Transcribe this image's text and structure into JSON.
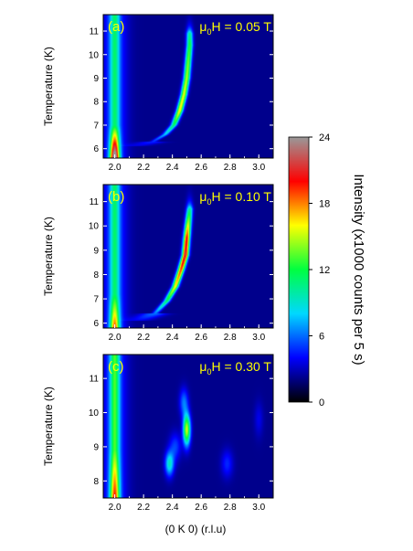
{
  "chart_data": [
    {
      "type": "heatmap",
      "panel_label": "(a)",
      "field_label": {
        "pre": "μ",
        "sub": "0",
        "post": "H = 0.05 T"
      },
      "ylabel": "Temperature (K)",
      "xlabel": "",
      "xlim": [
        1.92,
        3.1
      ],
      "ylim": [
        5.6,
        11.7
      ],
      "xticks": [
        "2.0",
        "2.2",
        "2.4",
        "2.6",
        "2.8",
        "3.0"
      ],
      "yticks": [
        "6",
        "7",
        "8",
        "9",
        "10",
        "11"
      ],
      "ridge": [
        [
          2.14,
          6.1,
          1.0
        ],
        [
          2.26,
          6.28,
          2.4
        ],
        [
          2.35,
          6.6,
          5.5
        ],
        [
          2.41,
          7.0,
          9.0
        ],
        [
          2.45,
          7.6,
          14.0
        ],
        [
          2.48,
          8.3,
          13.5
        ],
        [
          2.5,
          9.0,
          12.5
        ],
        [
          2.51,
          9.7,
          11.5
        ],
        [
          2.52,
          10.4,
          10.0
        ],
        [
          2.52,
          10.9,
          8.0
        ]
      ],
      "ridge_width": 0.022
    },
    {
      "type": "heatmap",
      "panel_label": "(b)",
      "field_label": {
        "pre": "μ",
        "sub": "0",
        "post": "H = 0.10 T"
      },
      "ylabel": "Temperature (K)",
      "xlabel": "",
      "xlim": [
        1.92,
        3.1
      ],
      "ylim": [
        5.8,
        11.7
      ],
      "xticks": [
        "2.0",
        "2.2",
        "2.4",
        "2.6",
        "2.8",
        "3.0"
      ],
      "yticks": [
        "6",
        "7",
        "8",
        "9",
        "10",
        "11"
      ],
      "ridge": [
        [
          2.16,
          6.1,
          1.5
        ],
        [
          2.28,
          6.4,
          4.0
        ],
        [
          2.36,
          6.9,
          9.0
        ],
        [
          2.42,
          7.5,
          14.0
        ],
        [
          2.46,
          8.2,
          17.0
        ],
        [
          2.49,
          8.8,
          19.5
        ],
        [
          2.5,
          9.5,
          18.0
        ],
        [
          2.51,
          10.1,
          13.0
        ],
        [
          2.52,
          10.7,
          8.0
        ]
      ],
      "ridge_width": 0.022
    },
    {
      "type": "heatmap",
      "panel_label": "(c)",
      "field_label": {
        "pre": "μ",
        "sub": "0",
        "post": "H = 0.30 T"
      },
      "ylabel": "Temperature (K)",
      "xlabel": "(0 K 0) (r.l.u)",
      "xlim": [
        1.92,
        3.1
      ],
      "ylim": [
        7.5,
        11.7
      ],
      "xticks": [
        "2.0",
        "2.2",
        "2.4",
        "2.6",
        "2.8",
        "3.0"
      ],
      "yticks": [
        "8",
        "9",
        "10",
        "11"
      ],
      "blobs": [
        [
          2.38,
          8.5,
          7.0,
          0.03,
          0.35
        ],
        [
          2.5,
          9.5,
          13.0,
          0.025,
          0.45
        ],
        [
          2.48,
          10.3,
          4.0,
          0.03,
          0.4
        ],
        [
          2.42,
          9.0,
          3.0,
          0.04,
          0.4
        ],
        [
          2.78,
          8.5,
          2.5,
          0.04,
          0.4
        ],
        [
          3.0,
          9.8,
          1.5,
          0.03,
          0.5
        ]
      ]
    }
  ],
  "bragg_peak": {
    "x": 2.0,
    "sigma": 0.032,
    "intensity_by_panel": [
      [
        6.0,
        22.0
      ],
      [
        6.0,
        14.0
      ],
      [
        8.0,
        15.0
      ]
    ]
  },
  "colorbar": {
    "label": "Intensity (x1000 counts per 5 s)",
    "ticks": [
      "0",
      "6",
      "12",
      "18",
      "24"
    ],
    "range": [
      0,
      24
    ],
    "colors": [
      "#000000",
      "#0000ff",
      "#00d8ff",
      "#00ff40",
      "#ffff00",
      "#ff0000",
      "#999999"
    ]
  },
  "background_color": "#0000ff"
}
